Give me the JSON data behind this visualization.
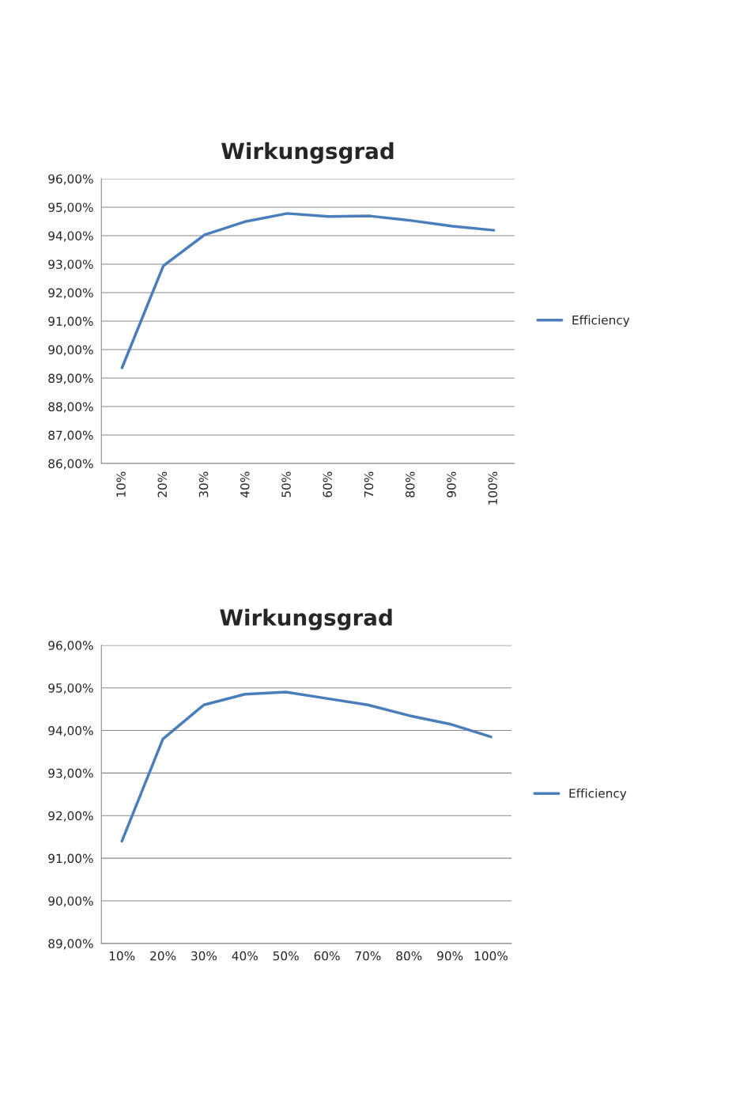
{
  "chart_data": [
    {
      "type": "line",
      "title": "Wirkungsgrad",
      "categories": [
        "10%",
        "20%",
        "30%",
        "40%",
        "50%",
        "60%",
        "70%",
        "80%",
        "90%",
        "100%"
      ],
      "series": [
        {
          "name": "Efficiency",
          "color": "#4a7ebb",
          "values": [
            89.36,
            92.94,
            94.03,
            94.5,
            94.78,
            94.67,
            94.69,
            94.53,
            94.33,
            94.19
          ]
        }
      ],
      "ylim": [
        86,
        96
      ],
      "yticks": [
        {
          "value": 86,
          "label": "86,00%"
        },
        {
          "value": 87,
          "label": "87,00%"
        },
        {
          "value": 88,
          "label": "88,00%"
        },
        {
          "value": 89,
          "label": "89,00%"
        },
        {
          "value": 90,
          "label": "90,00%"
        },
        {
          "value": 91,
          "label": "91,00%"
        },
        {
          "value": 92,
          "label": "92,00%"
        },
        {
          "value": 93,
          "label": "93,00%"
        },
        {
          "value": 94,
          "label": "94,00%"
        },
        {
          "value": 95,
          "label": "95,00%"
        },
        {
          "value": 96,
          "label": "96,00%"
        }
      ],
      "grid": "y",
      "legend": "right",
      "marker": "none",
      "line_style": "solid"
    },
    {
      "type": "line",
      "title": "Wirkungsgrad",
      "categories": [
        "10%",
        "20%",
        "30%",
        "40%",
        "50%",
        "60%",
        "70%",
        "80%",
        "90%",
        "100%"
      ],
      "series": [
        {
          "name": "Efficiency",
          "color": "#4a7ebb",
          "values": [
            91.4,
            93.8,
            94.6,
            94.85,
            94.9,
            94.75,
            94.6,
            94.35,
            94.15,
            93.85
          ]
        }
      ],
      "ylim": [
        89,
        96
      ],
      "yticks": [
        {
          "value": 89,
          "label": "89,00%"
        },
        {
          "value": 90,
          "label": "90,00%"
        },
        {
          "value": 91,
          "label": "91,00%"
        },
        {
          "value": 92,
          "label": "92,00%"
        },
        {
          "value": 93,
          "label": "93,00%"
        },
        {
          "value": 94,
          "label": "94,00%"
        },
        {
          "value": 95,
          "label": "95,00%"
        },
        {
          "value": 96,
          "label": "96,00%"
        }
      ],
      "grid": "y",
      "legend": "right",
      "marker": "none",
      "line_style": "solid"
    }
  ]
}
